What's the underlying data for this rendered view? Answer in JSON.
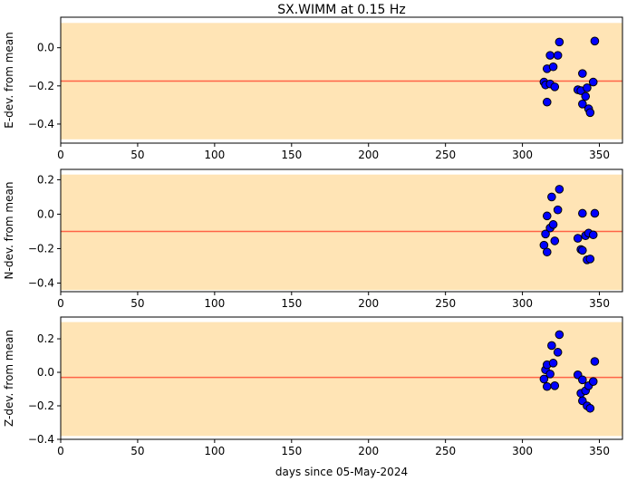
{
  "chart_data": {
    "type": "scatter",
    "title": "SX.WIMM at 0.15 Hz",
    "xlabel": "days since 05-May-2024",
    "xlim": [
      0,
      365
    ],
    "xticks": [
      0,
      50,
      100,
      150,
      200,
      250,
      300,
      350
    ],
    "colors": {
      "band": "#ffe4b5",
      "mean_line": "#ff6347",
      "marker_fill": "#0000ff",
      "marker_edge": "#000000"
    },
    "panels": [
      {
        "ylabel": "E-dev. from mean",
        "ylim": [
          -0.5,
          0.16
        ],
        "yticks": [
          -0.4,
          -0.2,
          0.0
        ],
        "ytick_labels": [
          "−0.4",
          "−0.2",
          "0.0"
        ],
        "band": [
          -0.48,
          0.13
        ],
        "mean": -0.175,
        "points": [
          [
            314,
            -0.18
          ],
          [
            315,
            -0.195
          ],
          [
            316,
            -0.11
          ],
          [
            316,
            -0.285
          ],
          [
            318,
            -0.19
          ],
          [
            318,
            -0.04
          ],
          [
            320,
            -0.1
          ],
          [
            321,
            -0.205
          ],
          [
            323,
            -0.04
          ],
          [
            324,
            0.03
          ],
          [
            336,
            -0.22
          ],
          [
            338,
            -0.225
          ],
          [
            339,
            -0.135
          ],
          [
            339,
            -0.295
          ],
          [
            341,
            -0.255
          ],
          [
            342,
            -0.21
          ],
          [
            343,
            -0.32
          ],
          [
            344,
            -0.34
          ],
          [
            346,
            -0.18
          ],
          [
            347,
            0.035
          ]
        ]
      },
      {
        "ylabel": "N-dev. from mean",
        "ylim": [
          -0.45,
          0.26
        ],
        "yticks": [
          -0.4,
          -0.2,
          0.0,
          0.2
        ],
        "ytick_labels": [
          "−0.4",
          "−0.2",
          "0.0",
          "0.2"
        ],
        "band": [
          -0.44,
          0.23
        ],
        "mean": -0.1,
        "points": [
          [
            314,
            -0.18
          ],
          [
            315,
            -0.115
          ],
          [
            316,
            -0.01
          ],
          [
            316,
            -0.22
          ],
          [
            318,
            -0.08
          ],
          [
            319,
            0.1
          ],
          [
            320,
            -0.06
          ],
          [
            321,
            -0.155
          ],
          [
            323,
            0.025
          ],
          [
            324,
            0.145
          ],
          [
            336,
            -0.14
          ],
          [
            338,
            -0.205
          ],
          [
            339,
            0.005
          ],
          [
            339,
            -0.21
          ],
          [
            341,
            -0.125
          ],
          [
            342,
            -0.265
          ],
          [
            343,
            -0.11
          ],
          [
            344,
            -0.26
          ],
          [
            346,
            -0.12
          ],
          [
            347,
            0.005
          ]
        ]
      },
      {
        "ylabel": "Z-dev. from mean",
        "ylim": [
          -0.4,
          0.33
        ],
        "yticks": [
          -0.4,
          -0.2,
          0.0,
          0.2
        ],
        "ytick_labels": [
          "−0.4",
          "−0.2",
          "0.0",
          "0.2"
        ],
        "band": [
          -0.38,
          0.3
        ],
        "mean": -0.03,
        "points": [
          [
            314,
            -0.04
          ],
          [
            315,
            0.015
          ],
          [
            316,
            0.045
          ],
          [
            316,
            -0.085
          ],
          [
            318,
            -0.01
          ],
          [
            319,
            0.16
          ],
          [
            320,
            0.055
          ],
          [
            321,
            -0.08
          ],
          [
            323,
            0.12
          ],
          [
            324,
            0.225
          ],
          [
            336,
            -0.015
          ],
          [
            338,
            -0.125
          ],
          [
            339,
            -0.17
          ],
          [
            339,
            -0.045
          ],
          [
            341,
            -0.11
          ],
          [
            342,
            -0.2
          ],
          [
            343,
            -0.08
          ],
          [
            344,
            -0.215
          ],
          [
            346,
            -0.055
          ],
          [
            347,
            0.065
          ]
        ]
      }
    ]
  }
}
